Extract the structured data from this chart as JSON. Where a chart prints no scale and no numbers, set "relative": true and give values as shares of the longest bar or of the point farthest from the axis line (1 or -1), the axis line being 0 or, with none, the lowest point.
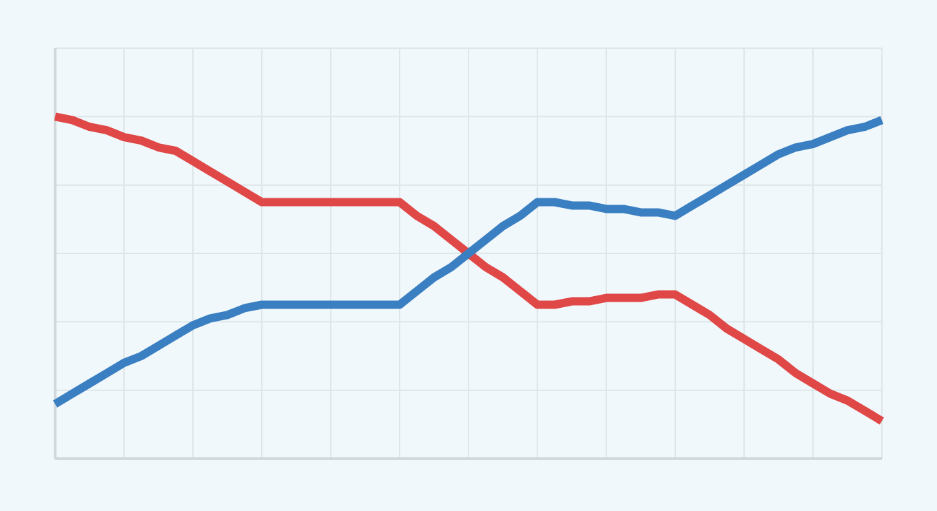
{
  "chart_data": {
    "type": "line",
    "relative": true,
    "categories": [
      null,
      null,
      null,
      null,
      null,
      null,
      null,
      null,
      null,
      null,
      null,
      null,
      null,
      null,
      null,
      null,
      null,
      null,
      null,
      null,
      null,
      null,
      null,
      null,
      null,
      null,
      null,
      null,
      null,
      null,
      null,
      null,
      null,
      null,
      null,
      null,
      null,
      null,
      null,
      null,
      null,
      null,
      null,
      null,
      null,
      null,
      null,
      null,
      null
    ],
    "grid": true,
    "marker": "none",
    "line_style": "solid",
    "series": [
      {
        "color": "#e04848",
        "values": [
          1.0,
          0.99,
          0.97,
          0.96,
          0.94,
          0.93,
          0.91,
          0.9,
          0.87,
          0.84,
          0.81,
          0.78,
          0.75,
          0.75,
          0.75,
          0.75,
          0.75,
          0.75,
          0.75,
          0.75,
          0.75,
          0.71,
          0.68,
          0.64,
          0.6,
          0.56,
          0.53,
          0.49,
          0.45,
          0.45,
          0.46,
          0.46,
          0.47,
          0.47,
          0.47,
          0.48,
          0.48,
          0.45,
          0.42,
          0.38,
          0.35,
          0.32,
          0.29,
          0.25,
          0.22,
          0.19,
          0.17,
          0.14,
          0.11
        ]
      },
      {
        "color": "#3a7fc1",
        "values": [
          0.16,
          0.19,
          0.22,
          0.25,
          0.28,
          0.3,
          0.33,
          0.36,
          0.39,
          0.41,
          0.42,
          0.44,
          0.45,
          0.45,
          0.45,
          0.45,
          0.45,
          0.45,
          0.45,
          0.45,
          0.45,
          0.49,
          0.53,
          0.56,
          0.6,
          0.64,
          0.68,
          0.71,
          0.75,
          0.75,
          0.74,
          0.74,
          0.73,
          0.73,
          0.72,
          0.72,
          0.71,
          0.74,
          0.77,
          0.8,
          0.83,
          0.86,
          0.89,
          0.91,
          0.92,
          0.94,
          0.96,
          0.97,
          0.99
        ]
      }
    ]
  }
}
